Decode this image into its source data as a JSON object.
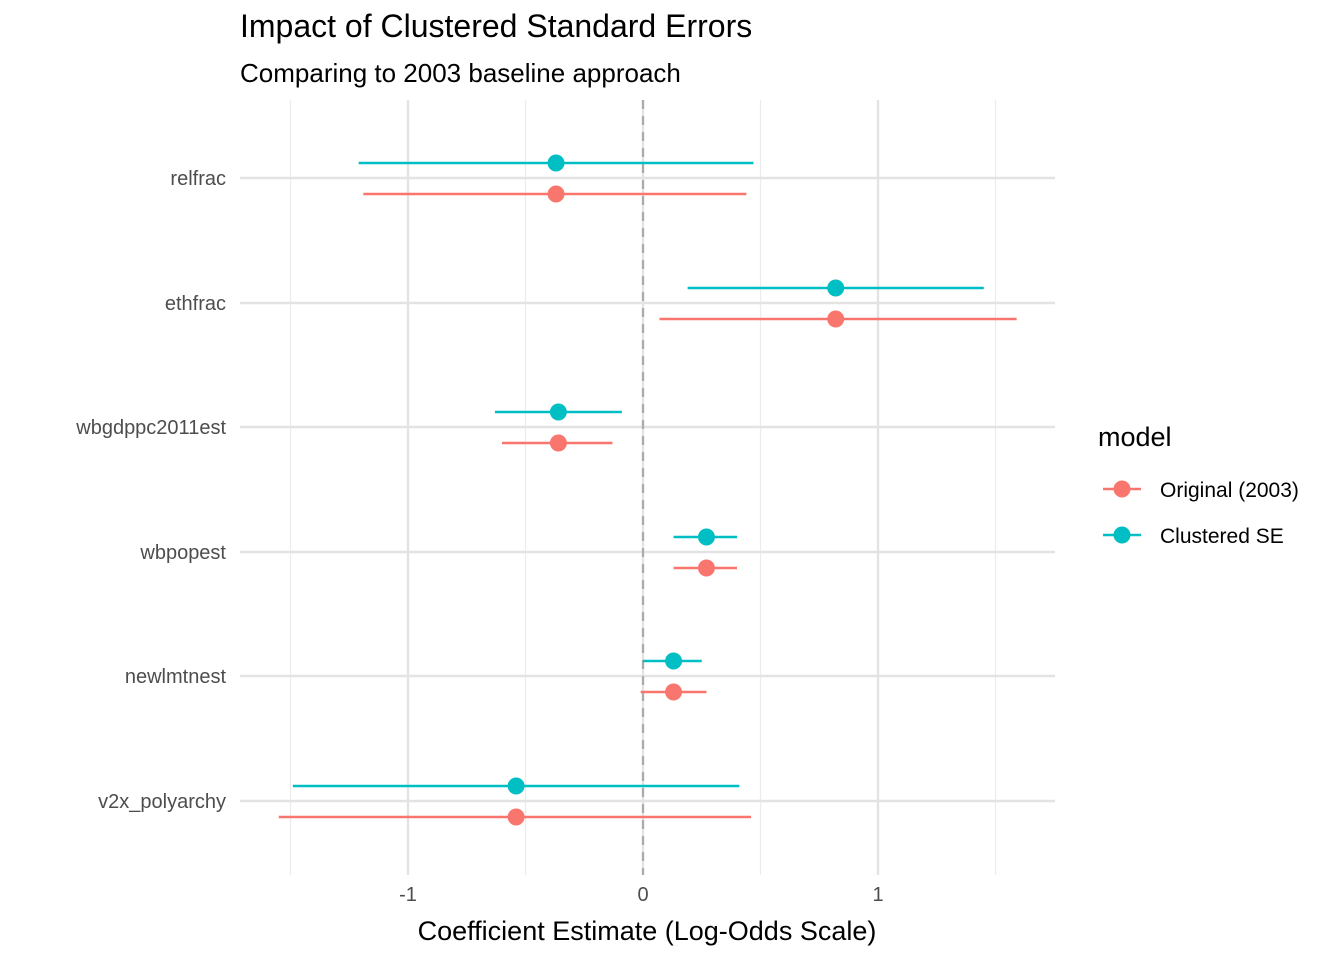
{
  "chart_data": {
    "type": "scatter",
    "title": "Impact of Clustered Standard Errors",
    "subtitle": "Comparing to 2003 baseline approach",
    "xlabel": "Coefficient Estimate (Log-Odds Scale)",
    "ylabel": "",
    "xlim": [
      -1.75,
      1.75
    ],
    "x_ticks": [
      -1,
      0,
      1
    ],
    "x_tick_labels": [
      "-1",
      "0",
      "1"
    ],
    "reference_line": 0,
    "grid": true,
    "legend": {
      "title": "model",
      "placement": "right"
    },
    "categories": [
      "relfrac",
      "ethfrac",
      "wbgdppc2011est",
      "wbpopest",
      "newlmtnest",
      "v2x_polyarchy"
    ],
    "series": [
      {
        "name": "Original (2003)",
        "color": "#F8766D",
        "estimates": [
          -0.37,
          0.82,
          -0.36,
          0.27,
          0.13,
          -0.54
        ],
        "lower": [
          -1.19,
          0.07,
          -0.6,
          0.13,
          -0.01,
          -1.55
        ],
        "upper": [
          0.44,
          1.59,
          -0.13,
          0.4,
          0.27,
          0.46
        ]
      },
      {
        "name": "Clustered SE",
        "color": "#00BFC4",
        "estimates": [
          -0.37,
          0.82,
          -0.36,
          0.27,
          0.13,
          -0.54
        ],
        "lower": [
          -1.21,
          0.19,
          -0.63,
          0.13,
          0.0,
          -1.49
        ],
        "upper": [
          0.47,
          1.45,
          -0.09,
          0.4,
          0.25,
          0.41
        ]
      }
    ]
  }
}
